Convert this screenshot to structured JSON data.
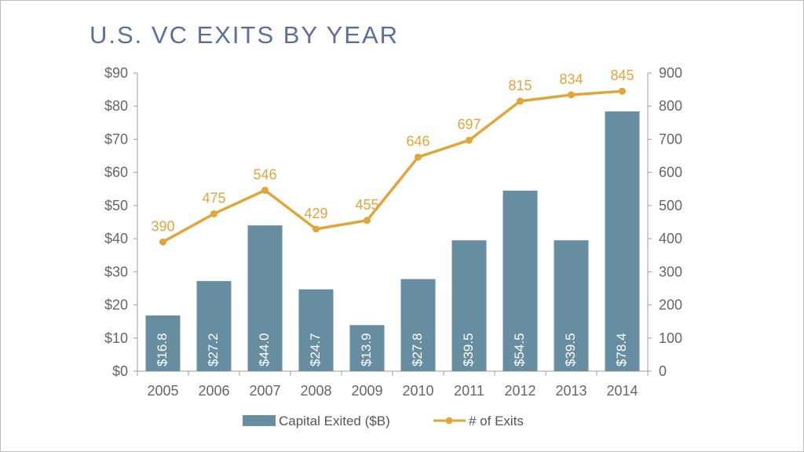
{
  "slide": {
    "title": "U.S. VC EXITS BY YEAR"
  },
  "colors": {
    "bar": "#668ea0",
    "line": "#e2a53a",
    "axis": "#9e9e9e",
    "tick_text": "#666666",
    "title": "#5b6e9c"
  },
  "chart_data": {
    "type": "bar",
    "title": "U.S. VC EXITS BY YEAR",
    "categories": [
      "2005",
      "2006",
      "2007",
      "2008",
      "2009",
      "2010",
      "2011",
      "2012",
      "2013",
      "2014"
    ],
    "series": [
      {
        "name": "Capital Exited ($B)",
        "type": "bar",
        "axis": "left",
        "values": [
          16.8,
          27.2,
          44.0,
          24.7,
          13.9,
          27.8,
          39.5,
          54.5,
          39.5,
          78.4
        ],
        "labels": [
          "$16.8",
          "$27.2",
          "$44.0",
          "$24.7",
          "$13.9",
          "$27.8",
          "$39.5",
          "$54.5",
          "$39.5",
          "$78.4"
        ]
      },
      {
        "name": "# of Exits",
        "type": "line",
        "axis": "right",
        "values": [
          390,
          475,
          546,
          429,
          455,
          646,
          697,
          815,
          834,
          845
        ],
        "labels": [
          "390",
          "475",
          "546",
          "429",
          "455",
          "646",
          "697",
          "815",
          "834",
          "845"
        ]
      }
    ],
    "y_left": {
      "min": 0,
      "max": 90,
      "ticks": [
        "$0",
        "$10",
        "$20",
        "$30",
        "$40",
        "$50",
        "$60",
        "$70",
        "$80",
        "$90"
      ]
    },
    "y_right": {
      "min": 0,
      "max": 900,
      "ticks": [
        "0",
        "100",
        "200",
        "300",
        "400",
        "500",
        "600",
        "700",
        "800",
        "900"
      ]
    },
    "grid": false,
    "legend_position": "bottom"
  }
}
